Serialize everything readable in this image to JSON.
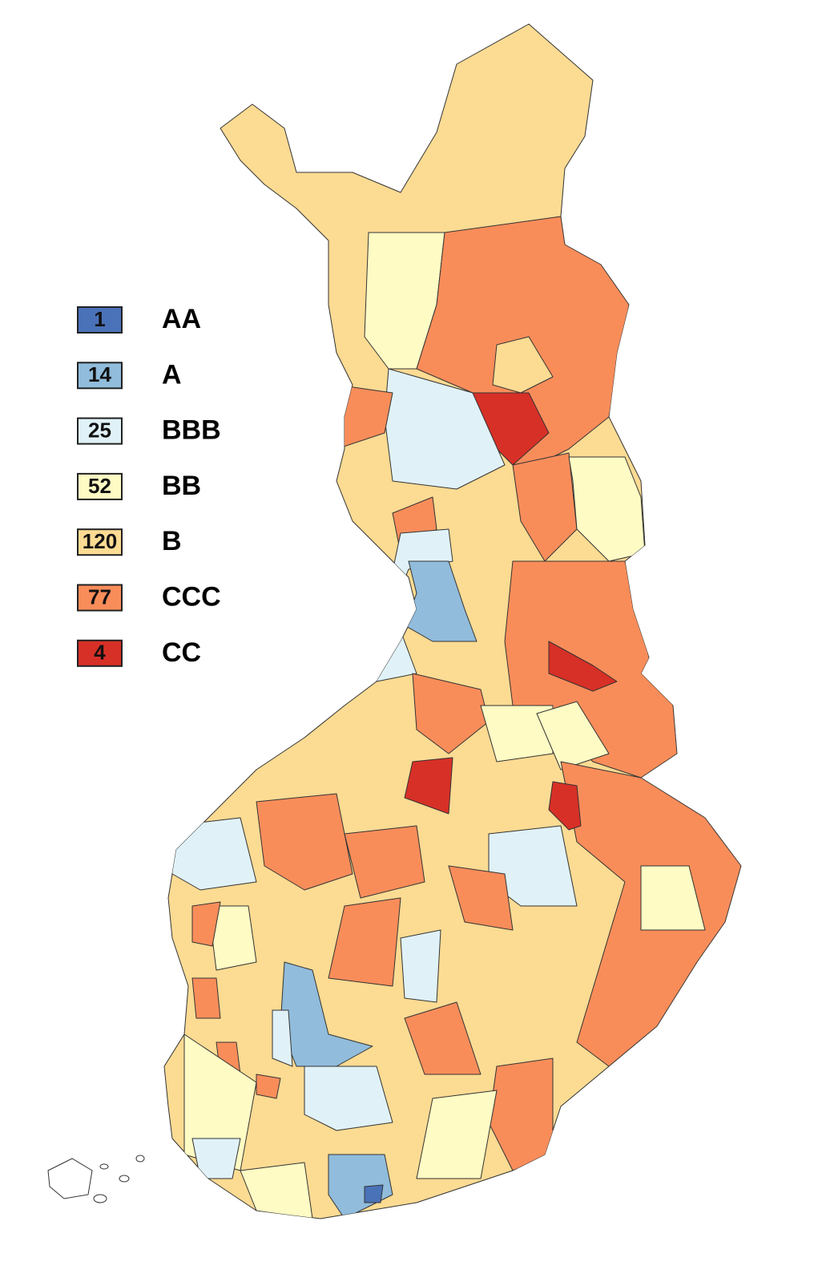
{
  "legend": {
    "items": [
      {
        "count": 1,
        "label": "AA",
        "color": "#4a72b8"
      },
      {
        "count": 14,
        "label": "A",
        "color": "#91bcdb"
      },
      {
        "count": 25,
        "label": "BBB",
        "color": "#e0f2f8"
      },
      {
        "count": 52,
        "label": "BB",
        "color": "#fefbc4"
      },
      {
        "count": 120,
        "label": "B",
        "color": "#fcdb93"
      },
      {
        "count": 77,
        "label": "CCC",
        "color": "#f98d5a"
      },
      {
        "count": 4,
        "label": "CC",
        "color": "#d73027"
      }
    ]
  }
}
